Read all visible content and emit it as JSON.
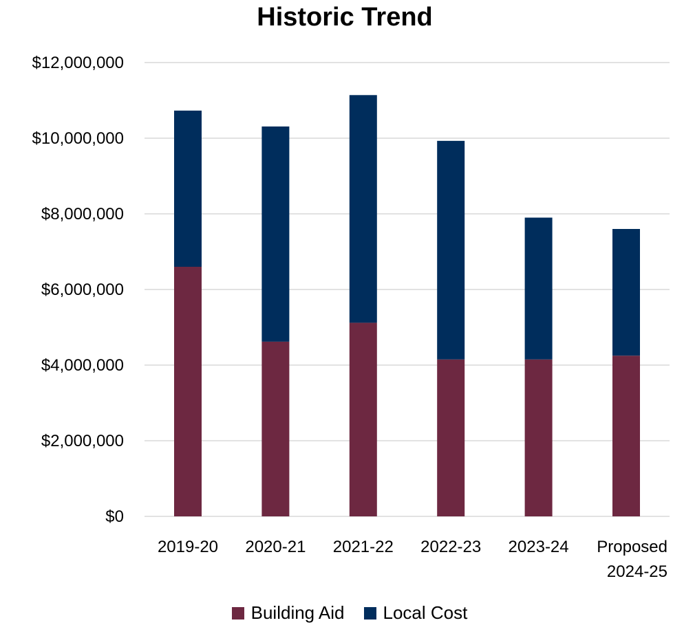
{
  "chart_data": {
    "type": "bar",
    "stacked": true,
    "title": "Historic Trend",
    "xlabel": "",
    "ylabel": "",
    "categories": [
      "2019-20",
      "2020-21",
      "2021-22",
      "2022-23",
      "2023-24",
      "Proposed 2024-25"
    ],
    "category_lines": [
      [
        "2019-20"
      ],
      [
        "2020-21"
      ],
      [
        "2021-22"
      ],
      [
        "2022-23"
      ],
      [
        "2023-24"
      ],
      [
        "Proposed",
        "2024-25"
      ]
    ],
    "series": [
      {
        "name": "Building Aid",
        "color": "#6d2841",
        "values": [
          6600000,
          4620000,
          5120000,
          4150000,
          4150000,
          4250000
        ]
      },
      {
        "name": "Local Cost",
        "color": "#002d5c",
        "values": [
          4130000,
          5690000,
          6020000,
          5780000,
          3750000,
          3350000
        ]
      }
    ],
    "ylim": [
      0,
      12000000
    ],
    "yticks": [
      0,
      2000000,
      4000000,
      6000000,
      8000000,
      10000000,
      12000000
    ],
    "ytick_labels": [
      "$0",
      "$2,000,000",
      "$4,000,000",
      "$6,000,000",
      "$8,000,000",
      "$10,000,000",
      "$12,000,000"
    ],
    "grid": true,
    "legend_position": "bottom"
  }
}
